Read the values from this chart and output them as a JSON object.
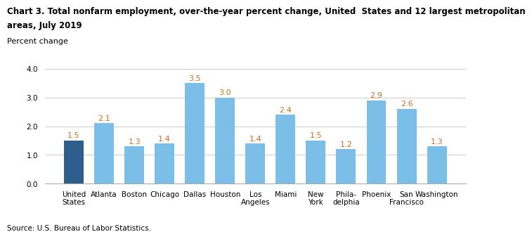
{
  "title_line1": "Chart 3. Total nonfarm employment, over-the-year percent change, United  States and 12 largest metropolitan",
  "title_line2": "areas, July 2019",
  "ylabel": "Percent change",
  "source": "Source: U.S. Bureau of Labor Statistics.",
  "categories": [
    "United\nStates",
    "Atlanta",
    "Boston",
    "Chicago",
    "Dallas",
    "Houston",
    "Los\nAngeles",
    "Miami",
    "New\nYork",
    "Phila-\ndelphia",
    "Phoenix",
    "San\nFrancisco",
    "Washington"
  ],
  "values": [
    1.5,
    2.1,
    1.3,
    1.4,
    3.5,
    3.0,
    1.4,
    2.4,
    1.5,
    1.2,
    2.9,
    2.6,
    1.3
  ],
  "bar_colors": [
    "#2E5F8C",
    "#7BBEE8",
    "#7BBEE8",
    "#7BBEE8",
    "#7BBEE8",
    "#7BBEE8",
    "#7BBEE8",
    "#7BBEE8",
    "#7BBEE8",
    "#7BBEE8",
    "#7BBEE8",
    "#7BBEE8",
    "#7BBEE8"
  ],
  "ylim": [
    0.0,
    4.0
  ],
  "yticks": [
    0.0,
    1.0,
    2.0,
    3.0,
    4.0
  ],
  "label_color": "#C87020",
  "title_fontsize": 8.5,
  "axis_label_fontsize": 8,
  "label_fontsize": 8,
  "tick_fontsize": 7.5,
  "source_fontsize": 7.5,
  "background_color": "#FFFFFF",
  "grid_color": "#CCCCCC"
}
